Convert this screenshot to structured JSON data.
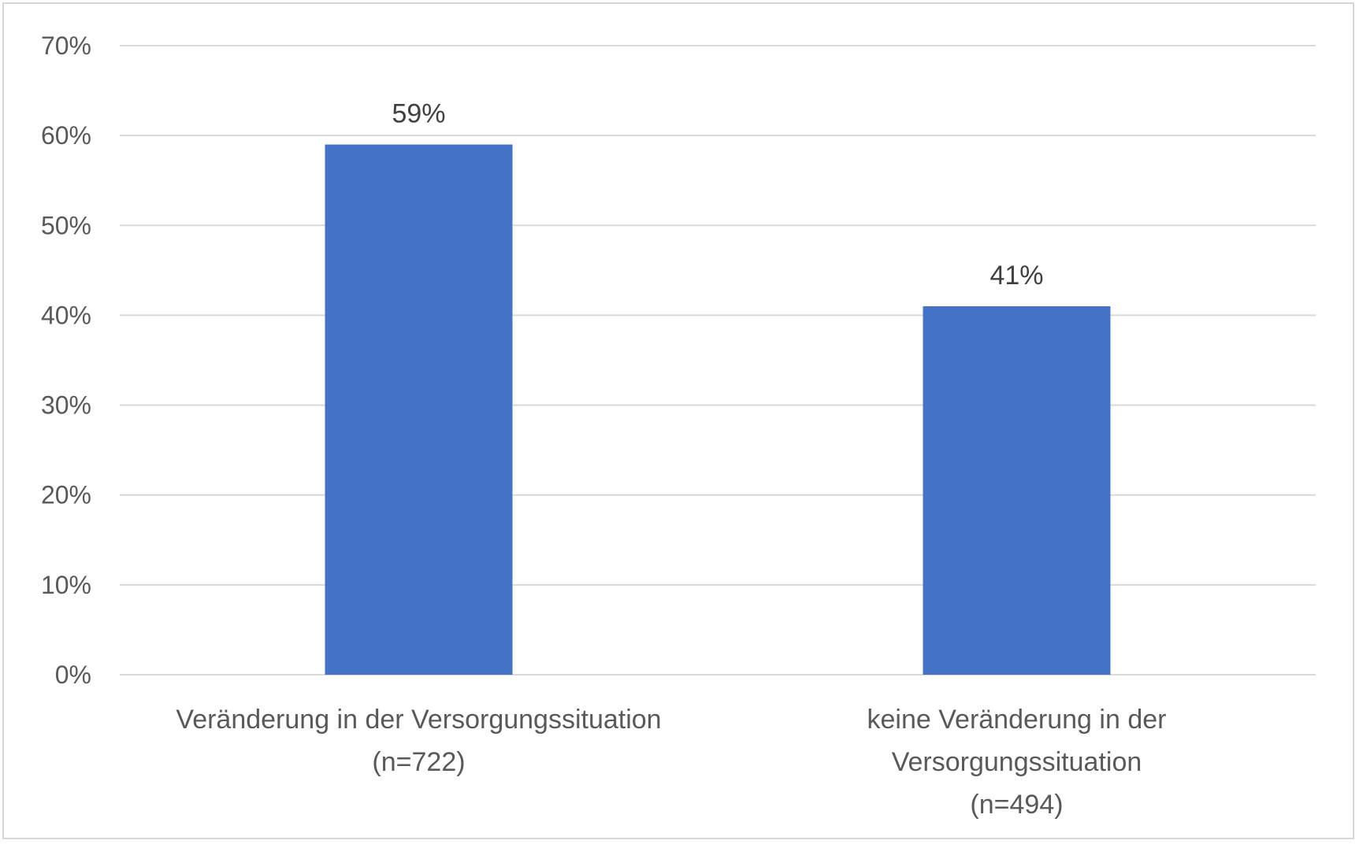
{
  "chart_data": {
    "type": "bar",
    "categories": [
      [
        "Veränderung in der Versorgungssituation",
        "(n=722)"
      ],
      [
        "keine Veränderung in der",
        "Versorgungssituation",
        "(n=494)"
      ]
    ],
    "values": [
      59,
      41
    ],
    "data_labels": [
      "59%",
      "41%"
    ],
    "ylim": [
      0,
      70
    ],
    "yticks": [
      0,
      10,
      20,
      30,
      40,
      50,
      60,
      70
    ],
    "ytick_labels": [
      "0%",
      "10%",
      "20%",
      "30%",
      "40%",
      "50%",
      "60%",
      "70%"
    ],
    "bar_color": "#4472C4",
    "grid": true,
    "legend": "none"
  }
}
